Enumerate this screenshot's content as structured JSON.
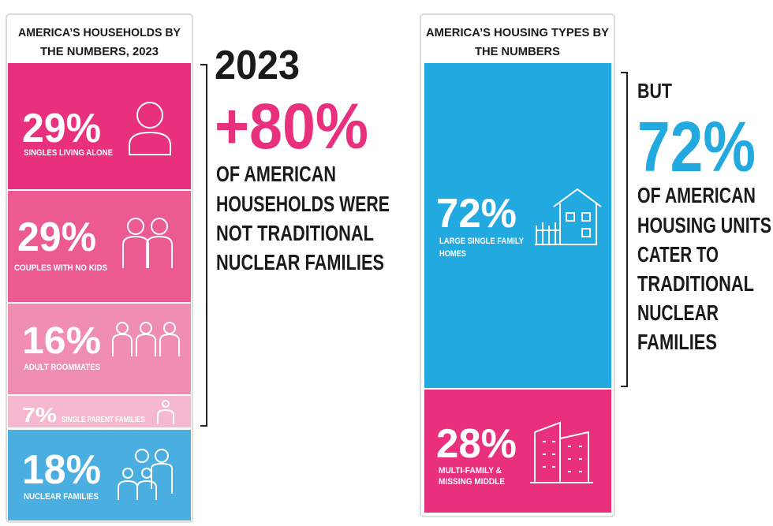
{
  "left_panel": {
    "title_lines": [
      "AMERICA’S HOUSEHOLDS BY",
      "THE NUMBERS, 2023"
    ],
    "blocks": [
      {
        "value": "29%",
        "label": "SINGLES LIVING ALONE"
      },
      {
        "value": "29%",
        "label": "COUPLES WITH NO KIDS"
      },
      {
        "value": "16%",
        "label": "ADULT ROOMMATES"
      },
      {
        "value": "7%",
        "label": "SINGLE PARENT FAMILIES"
      },
      {
        "value": "18%",
        "label": "NUCLEAR FAMILIES"
      }
    ]
  },
  "left_callout": {
    "year": "2023",
    "figure": "+80%",
    "lines": [
      "OF AMERICAN",
      "HOUSEHOLDS WERE",
      "NOT TRADITIONAL",
      "NUCLEAR FAMILIES"
    ]
  },
  "right_panel": {
    "title_lines": [
      "AMERICA’S HOUSING TYPES BY",
      "THE NUMBERS"
    ],
    "blocks": [
      {
        "value": "72%",
        "label_lines": [
          "LARGE SINGLE FAMILY",
          "HOMES"
        ]
      },
      {
        "value": "28%",
        "label_lines": [
          "MULTI-FAMILY &",
          "MISSING MIDDLE"
        ]
      }
    ]
  },
  "right_callout": {
    "lead": "BUT",
    "figure": "72%",
    "lines": [
      "OF AMERICAN",
      "HOUSING UNITS",
      "CATER TO",
      "TRADITIONAL",
      "NUCLEAR",
      "FAMILIES"
    ]
  }
}
